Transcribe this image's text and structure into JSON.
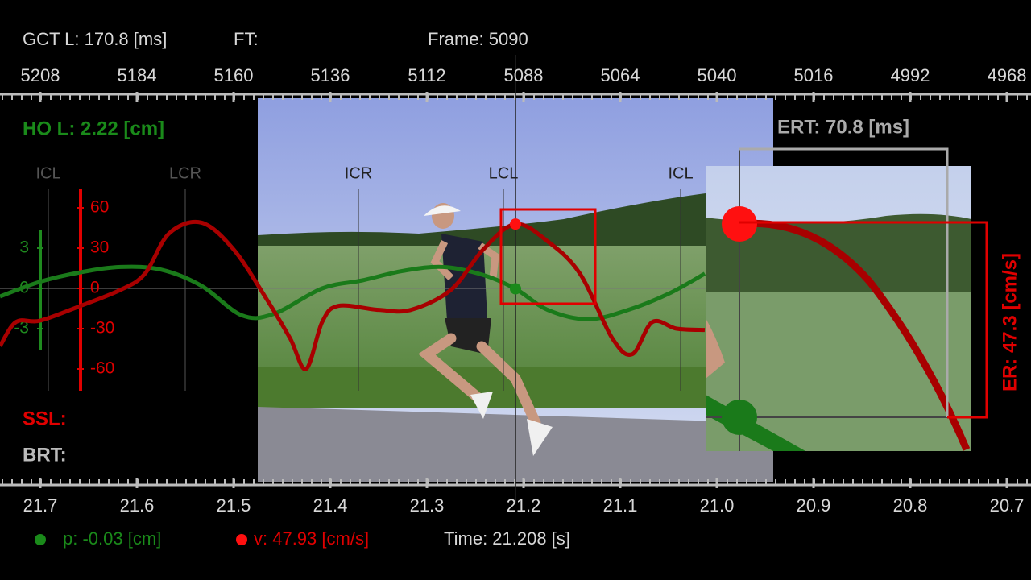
{
  "header": {
    "gct": "GCT L: 170.8 [ms]",
    "ft": "FT:",
    "frame": "Frame: 5090"
  },
  "frame_axis": {
    "ticks": [
      5208,
      5184,
      5160,
      5136,
      5112,
      5088,
      5064,
      5040,
      5016,
      4992,
      4968
    ]
  },
  "time_axis": {
    "ticks": [
      21.7,
      21.6,
      21.5,
      21.4,
      21.3,
      21.2,
      21.1,
      {
        "value": 21,
        "label": "21.0"
      },
      20.9,
      20.8,
      20.7
    ]
  },
  "ho": "HO L: 2.22 [cm]",
  "events": [
    "ICL",
    "LCR",
    "ICR",
    "LCL",
    "ICL"
  ],
  "position_axis": {
    "ticks": [
      3,
      0,
      -3
    ],
    "color": "#1f8a1f"
  },
  "velocity_axis": {
    "ticks": [
      60,
      30,
      0,
      -30,
      -60
    ],
    "color": "#e00000"
  },
  "position_curve": {
    "color": "#1a7a1a",
    "frames": [
      5218,
      5208,
      5198,
      5188,
      5178,
      5168,
      5158,
      5150,
      5138,
      5128,
      5118,
      5108,
      5098,
      5090,
      5082,
      5072,
      5062,
      5052,
      5043
    ],
    "values": [
      -0.6,
      0.5,
      1.2,
      1.6,
      1.4,
      0.2,
      -2.0,
      -1.9,
      0,
      0.6,
      1.3,
      1.6,
      1.0,
      -0.03,
      -1.6,
      -2.3,
      -1.6,
      -0.4,
      1.1
    ]
  },
  "velocity_curve": {
    "color": "#a80000",
    "frames": [
      5218,
      5214,
      5208,
      5198,
      5188,
      5182,
      5176,
      5168,
      5160,
      5152,
      5146,
      5142,
      5138,
      5134,
      5124,
      5116,
      5106,
      5098,
      5090,
      5082,
      5074,
      5066,
      5061,
      5056,
      5050,
      5043
    ],
    "values": [
      -43,
      -25,
      -24,
      -13,
      -1,
      11,
      41,
      49,
      29,
      -7,
      -37,
      -60,
      -25,
      -13,
      -16,
      -16,
      -1,
      29,
      47.93,
      35,
      11,
      -37,
      -49,
      -25,
      -30,
      -31
    ]
  },
  "ert": "ERT: 70.8 [ms]",
  "er": "ER: 47.3 [cm/s]",
  "ssl": "SSL:",
  "brt": "BRT:",
  "readout": {
    "p": "p: -0.03 [cm]",
    "v": "v: 47.93 [cm/s]",
    "time": "Time: 21.208 [s]"
  }
}
